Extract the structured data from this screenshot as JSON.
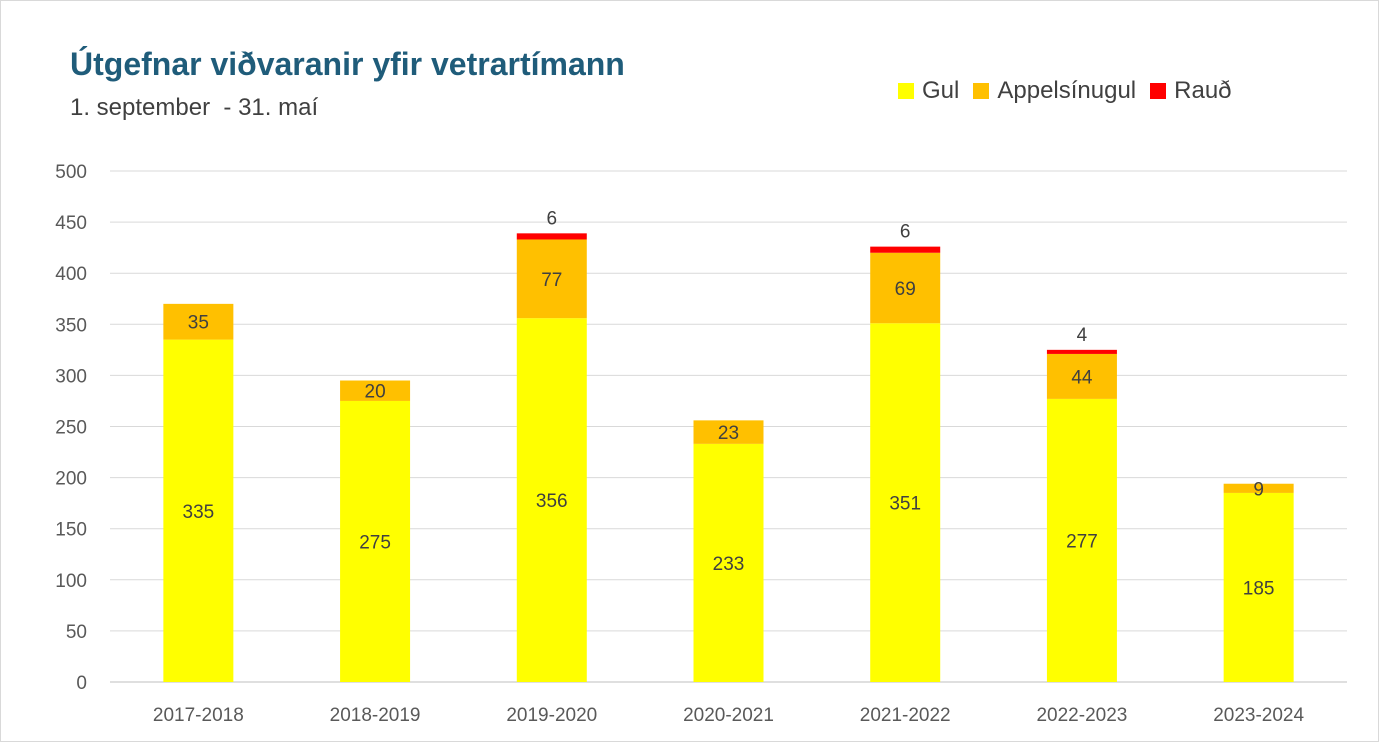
{
  "chart_data": {
    "type": "bar",
    "stacked": true,
    "title": "Útgefnar viðvaranir yfir vetrartímann",
    "subtitle": "1. september  - 31. maí",
    "categories": [
      "2017-2018",
      "2018-2019",
      "2019-2020",
      "2020-2021",
      "2021-2022",
      "2022-2023",
      "2023-2024"
    ],
    "series": [
      {
        "name": "Gul",
        "color": "#ffff00",
        "values": [
          335,
          275,
          356,
          233,
          351,
          277,
          185
        ]
      },
      {
        "name": "Appelsínugul",
        "color": "#ffc000",
        "values": [
          35,
          20,
          77,
          23,
          69,
          44,
          9
        ]
      },
      {
        "name": "Rauð",
        "color": "#ff0000",
        "values": [
          0,
          0,
          6,
          0,
          6,
          4,
          0
        ]
      }
    ],
    "ylim": [
      0,
      500
    ],
    "yticks": [
      0,
      50,
      100,
      150,
      200,
      250,
      300,
      350,
      400,
      450,
      500
    ],
    "grid": true,
    "legend_position": "top-right",
    "xlabel": "",
    "ylabel": ""
  }
}
